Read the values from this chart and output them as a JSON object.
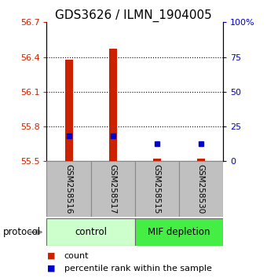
{
  "title": "GDS3626 / ILMN_1904005",
  "samples": [
    "GSM258516",
    "GSM258517",
    "GSM258515",
    "GSM258530"
  ],
  "count_values": [
    56.38,
    56.47,
    55.52,
    55.52
  ],
  "percentile_values": [
    55.72,
    55.72,
    55.65,
    55.65
  ],
  "ylim_left": [
    55.5,
    56.7
  ],
  "ylim_right": [
    0,
    100
  ],
  "yticks_left": [
    55.5,
    55.8,
    56.1,
    56.4,
    56.7
  ],
  "ytick_labels_left": [
    "55.5",
    "55.8",
    "56.1",
    "56.4",
    "56.7"
  ],
  "yticks_right": [
    0,
    25,
    50,
    75,
    100
  ],
  "ytick_labels_right": [
    "0",
    "25",
    "50",
    "75",
    "100%"
  ],
  "bar_bottom": 55.5,
  "bar_width": 0.18,
  "red_color": "#cc2200",
  "blue_color": "#0000cc",
  "grid_color": "#000000",
  "control_color": "#ccffcc",
  "mif_color": "#44ee44",
  "protocol_label": "protocol",
  "legend_items": [
    {
      "color": "#cc2200",
      "label": "count"
    },
    {
      "color": "#0000cc",
      "label": "percentile rank within the sample"
    }
  ],
  "sample_box_color": "#c0c0c0",
  "sample_box_edge": "#888888",
  "title_fontsize": 11,
  "tick_fontsize": 8,
  "label_fontsize": 9
}
